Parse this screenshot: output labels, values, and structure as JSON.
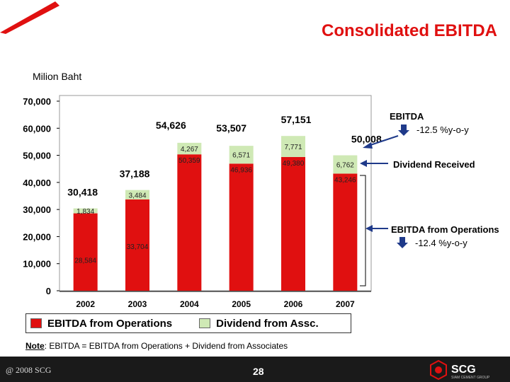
{
  "title": "Consolidated EBITDA",
  "unit_label": "Milion Baht",
  "colors": {
    "operations": "#e01010",
    "dividend": "#cfe9b5",
    "title": "#e01010"
  },
  "annotations": {
    "ebitda_label": "EBITDA",
    "ebitda_change": "-12.5 %y-o-y",
    "dividend_label": "Dividend Received",
    "ops_label": "EBITDA from Operations",
    "ops_change": "-12.4 %y-o-y"
  },
  "legend": {
    "operations": "EBITDA from Operations",
    "dividend": "Dividend from Assc."
  },
  "note": {
    "prefix": "Note",
    "text": ": EBITDA = EBITDA from Operations + Dividend from Associates"
  },
  "footer": {
    "copyright": "@ 2008 SCG",
    "page": "28",
    "logo_text": "SCG",
    "logo_sub": "SIAM CEMENT GROUP"
  },
  "chart_data": {
    "type": "bar",
    "stacked": true,
    "categories": [
      "2002",
      "2003",
      "2004",
      "2005",
      "2006",
      "2007"
    ],
    "series": [
      {
        "name": "EBITDA from Operations",
        "values": [
          28584,
          33704,
          50359,
          46936,
          49380,
          43246
        ],
        "labels": [
          "28,584",
          "33,704",
          "50,359",
          "46,936",
          "49,380",
          "43,246"
        ]
      },
      {
        "name": "Dividend from Assc.",
        "values": [
          1834,
          3484,
          4267,
          6571,
          7771,
          6762
        ],
        "labels": [
          "1,834",
          "3,484",
          "4,267",
          "6,571",
          "7,771",
          "6,762"
        ]
      }
    ],
    "totals": [
      30418,
      37188,
      54626,
      53507,
      57151,
      50008
    ],
    "total_labels": [
      "30,418",
      "37,188",
      "54,626",
      "53,507",
      "57,151",
      "50,008"
    ],
    "y_ticks": [
      "0",
      "10,000",
      "20,000",
      "30,000",
      "40,000",
      "50,000",
      "60,000",
      "70,000"
    ],
    "ylim": [
      0,
      70000
    ],
    "legend_position": "bottom",
    "grid": false
  }
}
